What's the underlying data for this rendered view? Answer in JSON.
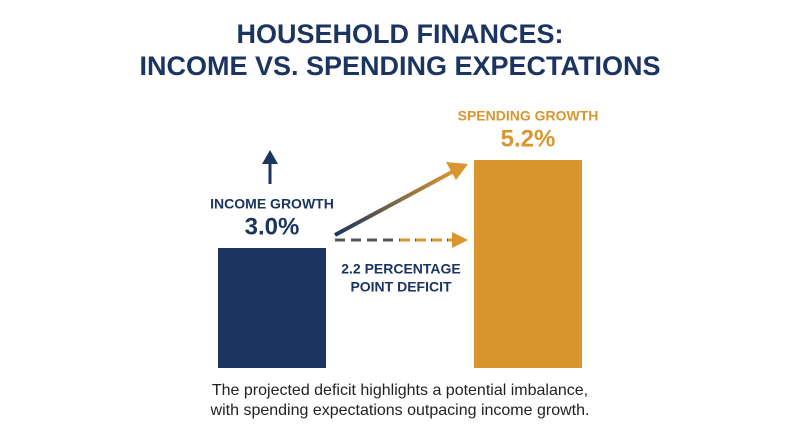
{
  "chart_data": {
    "type": "bar",
    "title_lines": [
      "HOUSEHOLD FINANCES:",
      "INCOME VS. SPENDING EXPECTATIONS"
    ],
    "categories": [
      "INCOME GROWTH",
      "SPENDING GROWTH"
    ],
    "values": [
      3.0,
      5.2
    ],
    "value_labels": [
      "3.0%",
      "5.2%"
    ],
    "colors": [
      "#1b3560",
      "#d9962e"
    ],
    "annotation_lines": [
      "2.2 PERCENTAGE",
      "POINT DEFICIT"
    ],
    "caption_lines": [
      "The projected deficit highlights a potential imbalance,",
      "with spending expectations outpacing income growth."
    ]
  }
}
